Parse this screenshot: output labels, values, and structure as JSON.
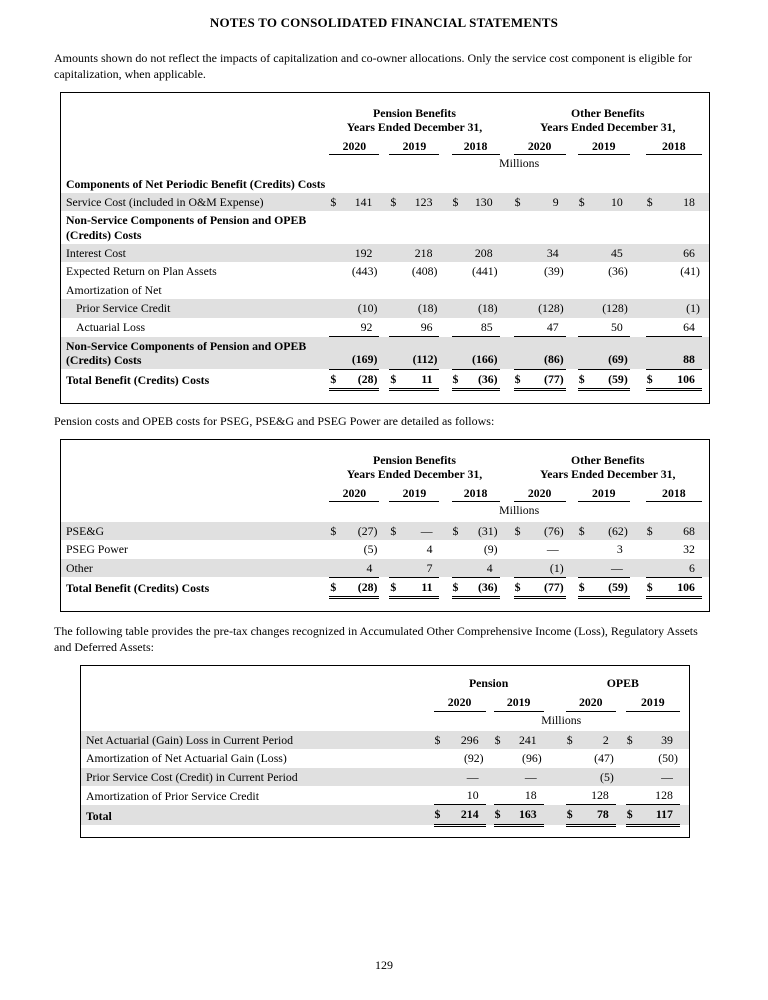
{
  "document": {
    "title": "NOTES TO CONSOLIDATED FINANCIAL STATEMENTS",
    "paragraphs": {
      "intro": "Amounts shown do not reflect the impacts of capitalization and co-owner allocations. Only the service cost component is eligible for capitalization, when applicable.",
      "pension_costs": "Pension costs and OPEB costs for PSEG, PSE&G and PSEG Power are detailed as follows:",
      "pretax_changes": "The following table provides the pre-tax changes recognized in Accumulated Other Comprehensive Income (Loss), Regulatory Assets and Deferred Assets:"
    },
    "page_number": "129"
  },
  "colors": {
    "row_shade": "#e0e0e0",
    "text": "#000000",
    "table_border": "#000000"
  },
  "tables": [
    {
      "name": "net-periodic-benefit-costs",
      "currency": "$",
      "units": "Millions",
      "groups": [
        {
          "title": "Pension Benefits",
          "subtitle": "Years Ended December 31,",
          "span": 3
        },
        {
          "title": "Other Benefits",
          "subtitle": "Years Ended December 31,",
          "span": 3
        }
      ],
      "years": [
        "2020",
        "2019",
        "2018",
        "2020",
        "2019",
        "2018"
      ],
      "rows": [
        {
          "label": "Components of Net Periodic Benefit (Credits) Costs",
          "bold": true,
          "values": []
        },
        {
          "label": "Service Cost (included in O&M Expense)",
          "shaded": true,
          "dollar": true,
          "values": [
            "141",
            "123",
            "130",
            "9",
            "10",
            "18"
          ]
        },
        {
          "label": "Non-Service Components of Pension and OPEB (Credits) Costs",
          "bold": true,
          "values": []
        },
        {
          "label": "Interest Cost",
          "shaded": true,
          "values": [
            "192",
            "218",
            "208",
            "34",
            "45",
            "66"
          ]
        },
        {
          "label": "Expected Return on Plan Assets",
          "values": [
            "(443)",
            "(408)",
            "(441)",
            "(39)",
            "(36)",
            "(41)"
          ]
        },
        {
          "label": "Amortization of Net",
          "values": []
        },
        {
          "label": "Prior Service Credit",
          "indent": true,
          "shaded": true,
          "values": [
            "(10)",
            "(18)",
            "(18)",
            "(128)",
            "(128)",
            "(1)"
          ]
        },
        {
          "label": "Actuarial Loss",
          "indent": true,
          "rule": "single",
          "values": [
            "92",
            "96",
            "85",
            "47",
            "50",
            "64"
          ]
        },
        {
          "label": "Non-Service Components of Pension and OPEB (Credits) Costs",
          "bold": true,
          "bold_values": true,
          "shaded": true,
          "rule": "single",
          "values": [
            "(169)",
            "(112)",
            "(166)",
            "(86)",
            "(69)",
            "88"
          ]
        },
        {
          "label": "Total Benefit (Credits) Costs",
          "bold": true,
          "bold_values": true,
          "dollar": true,
          "rule": "double",
          "values": [
            "(28)",
            "11",
            "(36)",
            "(77)",
            "(59)",
            "106"
          ]
        }
      ]
    },
    {
      "name": "benefit-costs-by-company",
      "currency": "$",
      "units": "Millions",
      "groups": [
        {
          "title": "Pension Benefits",
          "subtitle": "Years Ended December 31,",
          "span": 3
        },
        {
          "title": "Other Benefits",
          "subtitle": "Years Ended December 31,",
          "span": 3
        }
      ],
      "years": [
        "2020",
        "2019",
        "2018",
        "2020",
        "2019",
        "2018"
      ],
      "rows": [
        {
          "label": "PSE&G",
          "shaded": true,
          "dollar": true,
          "values": [
            "(27)",
            "—",
            "(31)",
            "(76)",
            "(62)",
            "68"
          ]
        },
        {
          "label": "PSEG Power",
          "values": [
            "(5)",
            "4",
            "(9)",
            "—",
            "3",
            "32"
          ]
        },
        {
          "label": "Other",
          "shaded": true,
          "rule": "single",
          "values": [
            "4",
            "7",
            "4",
            "(1)",
            "—",
            "6"
          ]
        },
        {
          "label": "Total Benefit (Credits) Costs",
          "bold": true,
          "bold_values": true,
          "dollar": true,
          "rule": "double",
          "values": [
            "(28)",
            "11",
            "(36)",
            "(77)",
            "(59)",
            "106"
          ]
        }
      ]
    },
    {
      "name": "pretax-changes",
      "currency": "$",
      "units": "Millions",
      "groups": [
        {
          "title": "Pension",
          "span": 2
        },
        {
          "title": "OPEB",
          "span": 2
        }
      ],
      "years": [
        "2020",
        "2019",
        "2020",
        "2019"
      ],
      "rows": [
        {
          "label": "Net Actuarial (Gain) Loss in Current Period",
          "shaded": true,
          "dollar": true,
          "values": [
            "296",
            "241",
            "2",
            "39"
          ]
        },
        {
          "label": "Amortization of Net Actuarial Gain (Loss)",
          "values": [
            "(92)",
            "(96)",
            "(47)",
            "(50)"
          ]
        },
        {
          "label": "Prior Service Cost (Credit) in Current Period",
          "shaded": true,
          "values": [
            "—",
            "—",
            "(5)",
            "—"
          ]
        },
        {
          "label": "Amortization of Prior Service Credit",
          "rule": "single",
          "values": [
            "10",
            "18",
            "128",
            "128"
          ]
        },
        {
          "label": "Total",
          "bold": true,
          "bold_values": true,
          "shaded": true,
          "dollar": true,
          "rule": "double",
          "values": [
            "214",
            "163",
            "78",
            "117"
          ]
        }
      ]
    }
  ]
}
